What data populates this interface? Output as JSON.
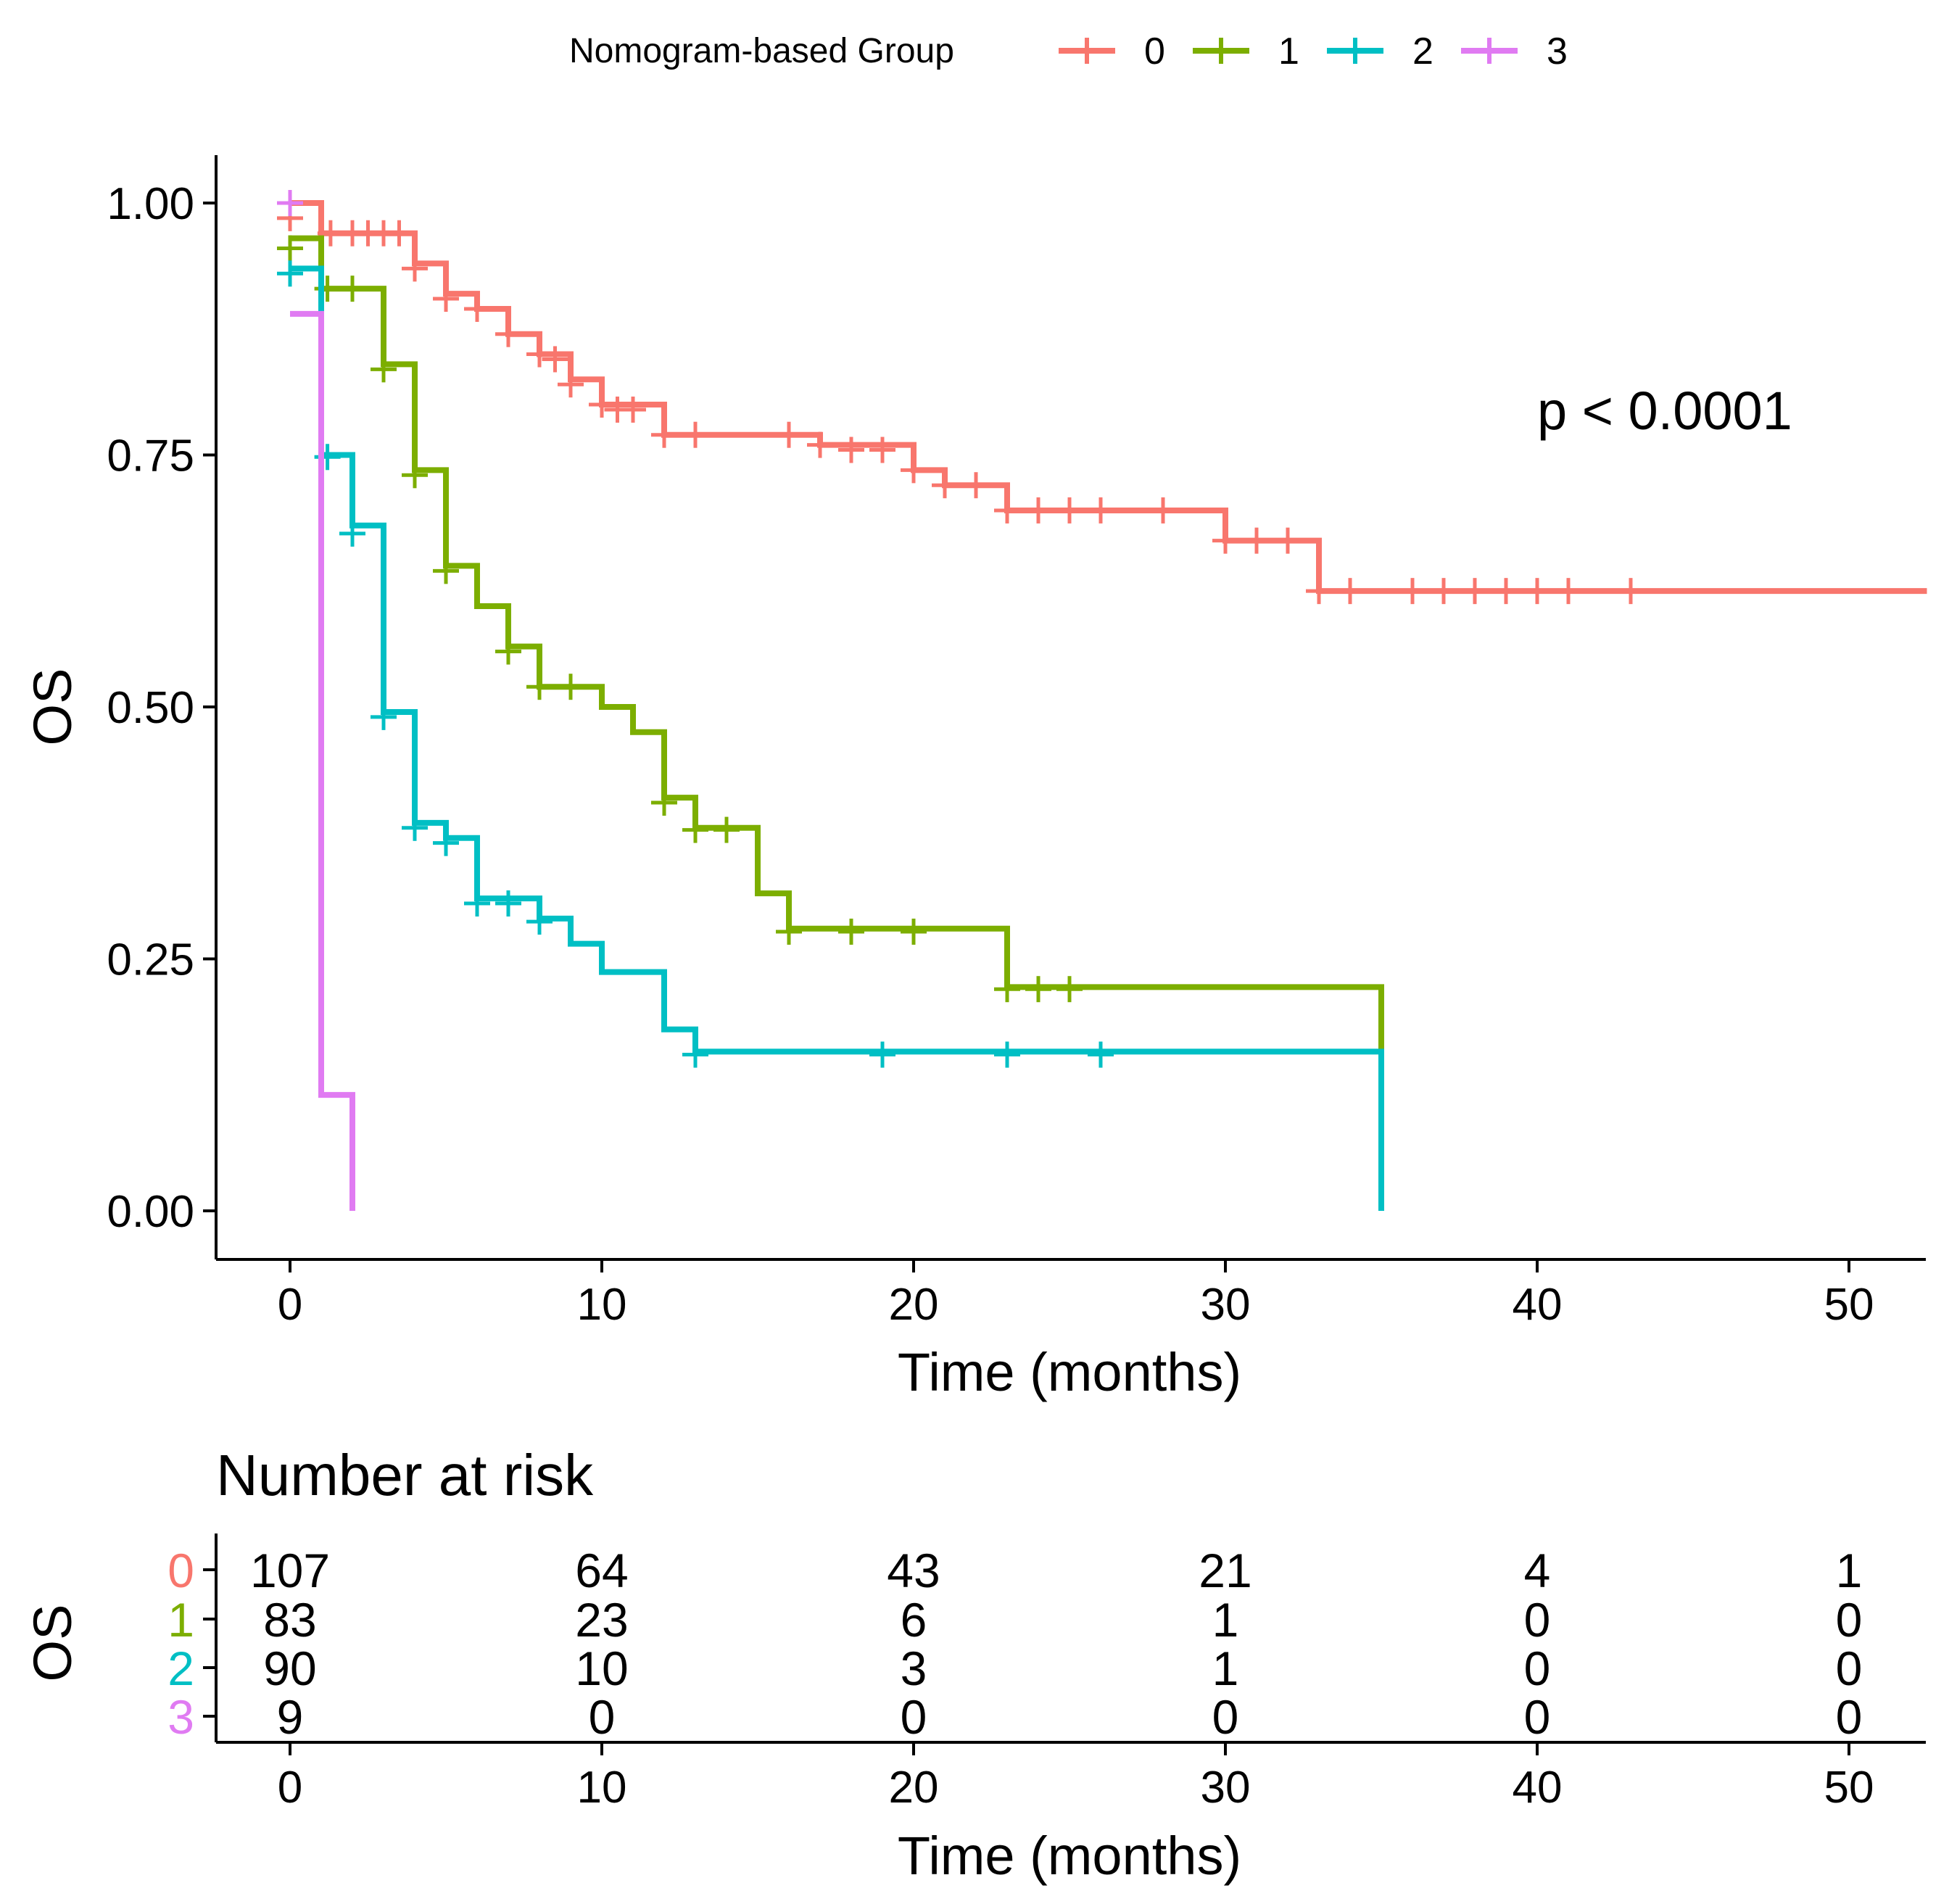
{
  "legend": {
    "title": "Nomogram-based Group",
    "items": [
      {
        "label": "0",
        "color": "#F8766D"
      },
      {
        "label": "1",
        "color": "#7CAE00"
      },
      {
        "label": "2",
        "color": "#00BFC4"
      },
      {
        "label": "3",
        "color": "#E07BF2"
      }
    ]
  },
  "annotation": "p < 0.0001",
  "chart_data": [
    {
      "type": "line",
      "subtype": "kaplan-meier step",
      "title": "",
      "xlabel": "Time (months)",
      "ylabel": "OS",
      "xlim": [
        -2.5,
        52.5
      ],
      "ylim": [
        -0.05,
        1.05
      ],
      "x_ticks": [
        0,
        10,
        20,
        30,
        40,
        50
      ],
      "y_ticks": [
        "0.00",
        "0.25",
        "0.50",
        "0.75",
        "1.00"
      ],
      "grid": false,
      "legend_position": "top",
      "series": [
        {
          "name": "0",
          "color": "#F8766D",
          "steps": [
            [
              0,
              1.0
            ],
            [
              1,
              0.97
            ],
            [
              4,
              0.94
            ],
            [
              5,
              0.91
            ],
            [
              6,
              0.895
            ],
            [
              7,
              0.87
            ],
            [
              8,
              0.85
            ],
            [
              9,
              0.825
            ],
            [
              10,
              0.8
            ],
            [
              12,
              0.77
            ],
            [
              17,
              0.76
            ],
            [
              20,
              0.735
            ],
            [
              21,
              0.72
            ],
            [
              23,
              0.695
            ],
            [
              30,
              0.665
            ],
            [
              33,
              0.615
            ],
            [
              52.5,
              0.615
            ]
          ],
          "censored": [
            [
              0,
              0.985
            ],
            [
              1.3,
              0.97
            ],
            [
              2,
              0.97
            ],
            [
              2.5,
              0.97
            ],
            [
              3,
              0.97
            ],
            [
              3.5,
              0.97
            ],
            [
              4,
              0.935
            ],
            [
              5,
              0.905
            ],
            [
              6,
              0.895
            ],
            [
              7,
              0.87
            ],
            [
              8,
              0.85
            ],
            [
              8.5,
              0.845
            ],
            [
              9,
              0.82
            ],
            [
              10,
              0.8
            ],
            [
              10.5,
              0.795
            ],
            [
              11,
              0.795
            ],
            [
              12,
              0.77
            ],
            [
              13,
              0.77
            ],
            [
              16,
              0.77
            ],
            [
              17,
              0.76
            ],
            [
              18,
              0.755
            ],
            [
              19,
              0.755
            ],
            [
              20,
              0.735
            ],
            [
              21,
              0.72
            ],
            [
              22,
              0.72
            ],
            [
              23,
              0.695
            ],
            [
              24,
              0.695
            ],
            [
              25,
              0.695
            ],
            [
              26,
              0.695
            ],
            [
              28,
              0.695
            ],
            [
              30,
              0.665
            ],
            [
              31,
              0.665
            ],
            [
              32,
              0.665
            ],
            [
              33,
              0.615
            ],
            [
              34,
              0.615
            ],
            [
              36,
              0.615
            ],
            [
              37,
              0.615
            ],
            [
              38,
              0.615
            ],
            [
              39,
              0.615
            ],
            [
              40,
              0.615
            ],
            [
              41,
              0.615
            ],
            [
              43,
              0.615
            ]
          ]
        },
        {
          "name": "1",
          "color": "#7CAE00",
          "steps": [
            [
              0,
              0.965
            ],
            [
              1,
              0.915
            ],
            [
              3,
              0.84
            ],
            [
              4,
              0.735
            ],
            [
              5,
              0.64
            ],
            [
              6,
              0.6
            ],
            [
              7,
              0.56
            ],
            [
              8,
              0.52
            ],
            [
              10,
              0.5
            ],
            [
              11,
              0.475
            ],
            [
              12,
              0.41
            ],
            [
              13,
              0.38
            ],
            [
              15,
              0.315
            ],
            [
              16,
              0.28
            ],
            [
              23,
              0.222
            ],
            [
              35,
              0.222
            ],
            [
              35,
              0.16
            ]
          ],
          "censored": [
            [
              0,
              0.955
            ],
            [
              1.2,
              0.915
            ],
            [
              2,
              0.915
            ],
            [
              3,
              0.835
            ],
            [
              4,
              0.73
            ],
            [
              5,
              0.635
            ],
            [
              7,
              0.555
            ],
            [
              8,
              0.52
            ],
            [
              9,
              0.52
            ],
            [
              12,
              0.405
            ],
            [
              13,
              0.378
            ],
            [
              14,
              0.378
            ],
            [
              16,
              0.277
            ],
            [
              18,
              0.277
            ],
            [
              20,
              0.277
            ],
            [
              23,
              0.22
            ],
            [
              24,
              0.22
            ],
            [
              25,
              0.22
            ]
          ]
        },
        {
          "name": "2",
          "color": "#00BFC4",
          "steps": [
            [
              0,
              0.935
            ],
            [
              1,
              0.75
            ],
            [
              2,
              0.68
            ],
            [
              3,
              0.495
            ],
            [
              4,
              0.385
            ],
            [
              5,
              0.37
            ],
            [
              6,
              0.31
            ],
            [
              8,
              0.29
            ],
            [
              9,
              0.265
            ],
            [
              10,
              0.237
            ],
            [
              12,
              0.18
            ],
            [
              13,
              0.158
            ],
            [
              35,
              0.158
            ],
            [
              35,
              0.0
            ]
          ],
          "censored": [
            [
              0,
              0.93
            ],
            [
              1.2,
              0.748
            ],
            [
              2,
              0.672
            ],
            [
              3,
              0.49
            ],
            [
              4,
              0.38
            ],
            [
              5,
              0.365
            ],
            [
              6,
              0.305
            ],
            [
              7,
              0.305
            ],
            [
              8,
              0.287
            ],
            [
              13,
              0.155
            ],
            [
              19,
              0.155
            ],
            [
              23,
              0.155
            ],
            [
              26,
              0.155
            ]
          ]
        },
        {
          "name": "3",
          "color": "#E07BF2",
          "steps": [
            [
              0,
              0.89
            ],
            [
              1,
              0.115
            ],
            [
              2,
              0.115
            ],
            [
              2,
              0.0
            ]
          ],
          "censored": [
            [
              0,
              1.0
            ]
          ]
        }
      ]
    },
    {
      "type": "table",
      "title": "Number at risk",
      "xlabel": "Time (months)",
      "ylabel": "OS",
      "x_ticks": [
        0,
        10,
        20,
        30,
        40,
        50
      ],
      "rows": [
        {
          "group": "0",
          "color": "#F8766D",
          "values": [
            107,
            64,
            43,
            21,
            4,
            1
          ]
        },
        {
          "group": "1",
          "color": "#7CAE00",
          "values": [
            83,
            23,
            6,
            1,
            0,
            0
          ]
        },
        {
          "group": "2",
          "color": "#00BFC4",
          "values": [
            90,
            10,
            3,
            1,
            0,
            0
          ]
        },
        {
          "group": "3",
          "color": "#E07BF2",
          "values": [
            9,
            0,
            0,
            0,
            0,
            0
          ]
        }
      ]
    }
  ]
}
